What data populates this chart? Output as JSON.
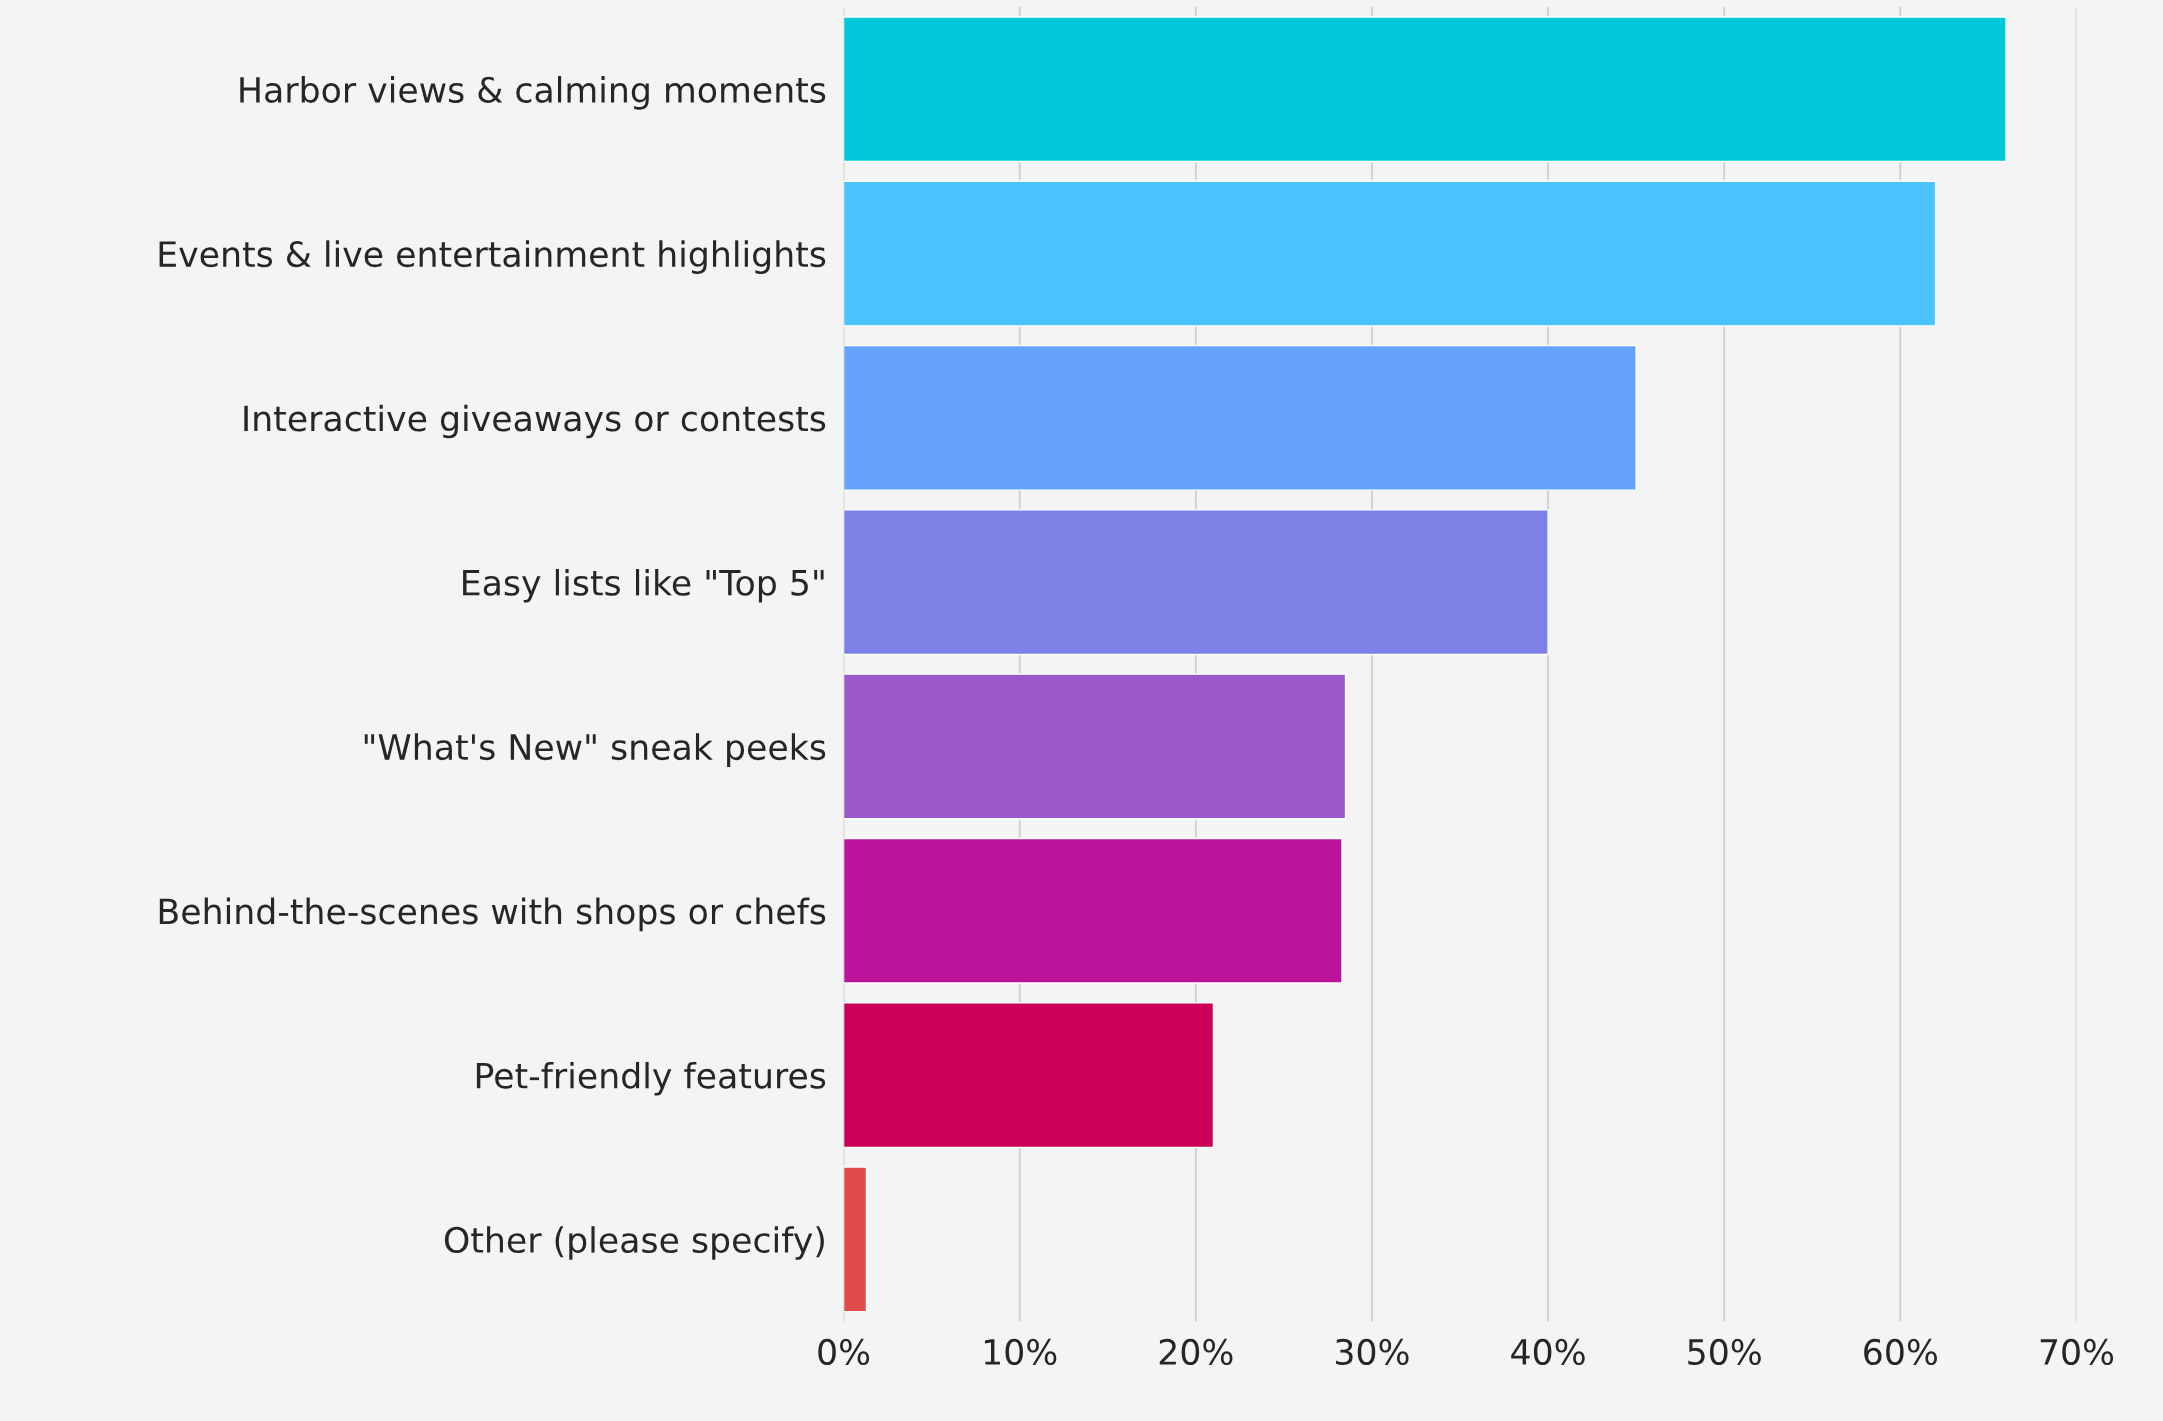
{
  "chart_data": {
    "type": "bar",
    "orientation": "horizontal",
    "categories": [
      "Harbor views & calming moments",
      "Events & live entertainment highlights",
      "Interactive giveaways or contests",
      "Easy lists like \"Top 5\"",
      "\"What's New\" sneak peeks",
      "Behind-the-scenes with shops or chefs",
      "Pet-friendly features",
      "Other (please specify)"
    ],
    "values": [
      66,
      62,
      45,
      40,
      28.5,
      28.3,
      21,
      1.3
    ],
    "colors": [
      "#00c8d8",
      "#4ac3fd",
      "#66a3fb",
      "#7d80e5",
      "#9a58cb",
      "#bb1399",
      "#cc0058",
      "#e04a48"
    ],
    "xlim": [
      0,
      70
    ],
    "xticks": [
      {
        "value": 0,
        "label": "0%"
      },
      {
        "value": 10,
        "label": "10%"
      },
      {
        "value": 20,
        "label": "20%"
      },
      {
        "value": 30,
        "label": "30%"
      },
      {
        "value": 40,
        "label": "40%"
      },
      {
        "value": 50,
        "label": "50%"
      },
      {
        "value": 60,
        "label": "60%"
      },
      {
        "value": 70,
        "label": "70%"
      }
    ],
    "grid": "x",
    "legend": false
  }
}
